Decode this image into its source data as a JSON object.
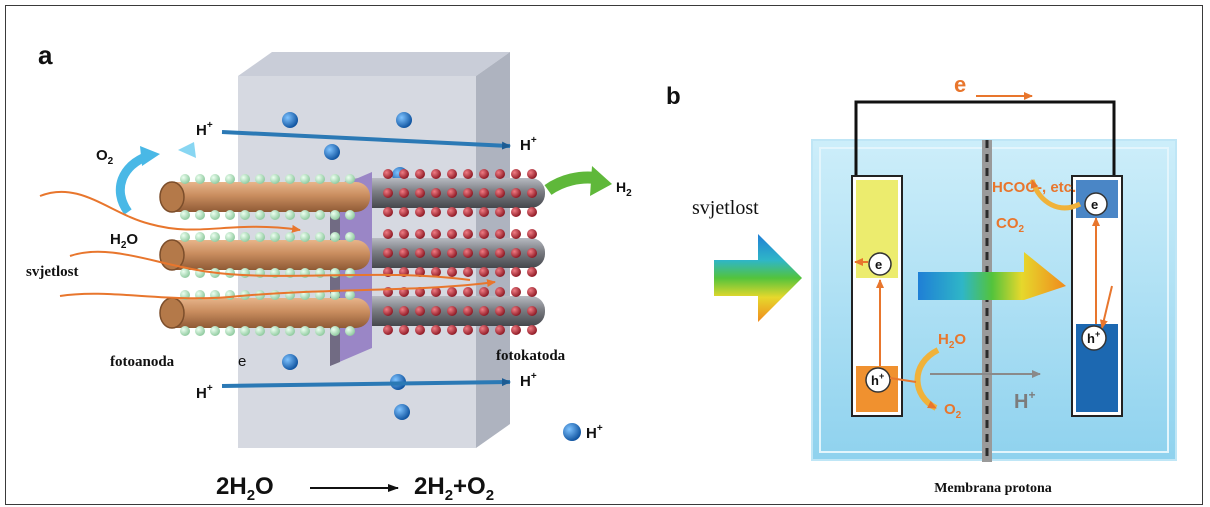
{
  "panel_a": {
    "label": "a",
    "o2": "O",
    "o2_sub": "2",
    "h_plus_top_left": "H",
    "h_plus_top_right": "H",
    "h2": "H",
    "h2_sub": "2",
    "h2o": "H",
    "h2o_sub": "2",
    "h2o_tail": "O",
    "light": "svjetlost",
    "photoanode": "fotoanoda",
    "photocathode": "fotokatoda",
    "electron_fragment": "e",
    "h_plus_bottom_left": "H",
    "h_plus_bottom_right": "H",
    "legend_h": "H",
    "plus": "+",
    "equation": {
      "left": "2H",
      "left_sub": "2",
      "left_tail": "O",
      "right": "2H",
      "right_sub": "2",
      "right_tail": "+O",
      "right_tail_sub": "2"
    }
  },
  "panel_b": {
    "label": "b",
    "electron_top": "e",
    "light": "svjetlost",
    "product": "HCOO-, etc.",
    "co2": "CO",
    "co2_sub": "2",
    "electron": "e",
    "hole": "h",
    "hole_sup": "+",
    "h2o": "H",
    "h2o_sub": "2",
    "h2o_tail": "O",
    "o2": "O",
    "o2_sub": "2",
    "h_plus": "H",
    "h_plus_sup": "+",
    "membrane": "Membrana protona"
  },
  "colors": {
    "orange": "#e8762d",
    "arrow_blue": "#2b79b5",
    "rod_anode": "#c98d5f",
    "rod_cathode": "#7c7e84",
    "bead_anode": "#b9e3c4",
    "bead_cathode": "#b3252f",
    "cell_water": "#a9ddf2",
    "semiconductor_yellow": "#ecec6e",
    "semiconductor_blue": "#1c68b1",
    "semiconductor_orange": "#f0912f"
  }
}
